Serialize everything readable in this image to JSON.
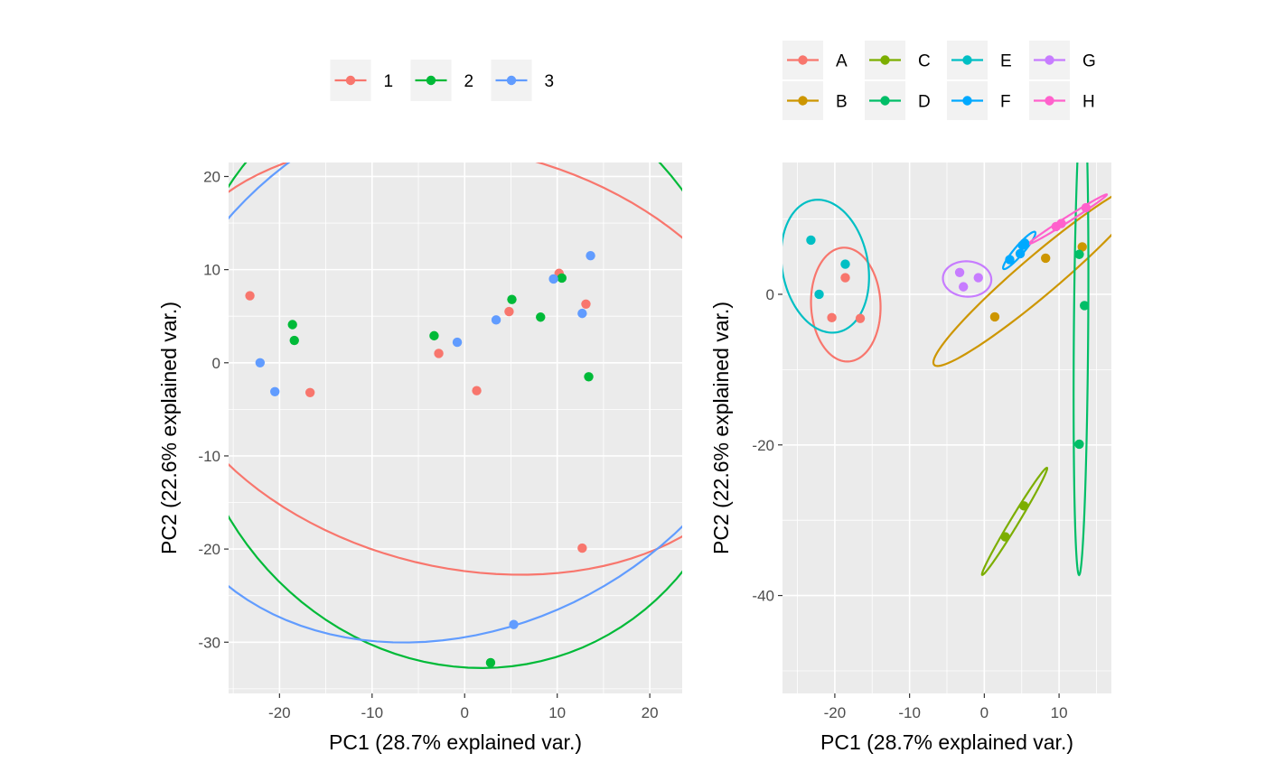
{
  "chart_data": [
    {
      "type": "scatter",
      "xlabel": "PC1 (28.7% explained var.)",
      "ylabel": "PC2 (22.6% explained var.)",
      "xlim": [
        -25.5,
        23.5
      ],
      "ylim": [
        -35.5,
        21.5
      ],
      "xticks": [
        -20,
        -10,
        0,
        10,
        20
      ],
      "yticks": [
        20,
        10,
        0,
        -10,
        -20,
        -30
      ],
      "grid": true,
      "background": "#ebebeb",
      "legend_position": "top",
      "ellipses": true,
      "legend": [
        {
          "label": "1",
          "color": "#F8766D"
        },
        {
          "label": "2",
          "color": "#00BA38"
        },
        {
          "label": "3",
          "color": "#619CFF"
        }
      ],
      "series": [
        {
          "name": "1",
          "color": "#F8766D",
          "points": [
            [
              -23.2,
              7.2
            ],
            [
              -16.7,
              -3.2
            ],
            [
              -2.8,
              1.0
            ],
            [
              1.3,
              -3.0
            ],
            [
              4.8,
              5.5
            ],
            [
              10.2,
              9.6
            ],
            [
              13.1,
              6.3
            ],
            [
              12.7,
              -19.9
            ]
          ]
        },
        {
          "name": "2",
          "color": "#00BA38",
          "points": [
            [
              -18.6,
              4.1
            ],
            [
              -18.4,
              2.4
            ],
            [
              -3.3,
              2.9
            ],
            [
              5.1,
              6.8
            ],
            [
              8.2,
              4.9
            ],
            [
              10.5,
              9.1
            ],
            [
              13.4,
              -1.5
            ],
            [
              2.8,
              -32.2
            ]
          ]
        },
        {
          "name": "3",
          "color": "#619CFF",
          "points": [
            [
              -22.1,
              0.0
            ],
            [
              -20.5,
              -3.1
            ],
            [
              -0.8,
              2.2
            ],
            [
              3.4,
              4.6
            ],
            [
              9.6,
              9.0
            ],
            [
              12.7,
              5.3
            ],
            [
              13.6,
              11.5
            ],
            [
              5.3,
              -28.1
            ]
          ]
        }
      ]
    },
    {
      "type": "scatter",
      "xlabel": "PC1 (28.7% explained var.)",
      "ylabel": "PC2 (22.6% explained var.)",
      "xlim": [
        -27,
        17
      ],
      "ylim": [
        -53,
        17.5
      ],
      "xticks": [
        -20,
        -10,
        0,
        10
      ],
      "yticks": [
        0,
        -20,
        -40
      ],
      "grid": true,
      "background": "#ebebeb",
      "legend_position": "top",
      "ellipses": true,
      "legend": [
        {
          "label": "A",
          "color": "#F8766D"
        },
        {
          "label": "B",
          "color": "#CD9600"
        },
        {
          "label": "C",
          "color": "#7CAE00"
        },
        {
          "label": "D",
          "color": "#00BE67"
        },
        {
          "label": "E",
          "color": "#00BFC4"
        },
        {
          "label": "F",
          "color": "#00A9FF"
        },
        {
          "label": "G",
          "color": "#C77CFF"
        },
        {
          "label": "H",
          "color": "#FF61CC"
        }
      ],
      "series": [
        {
          "name": "A",
          "color": "#F8766D",
          "points": [
            [
              -18.6,
              2.2
            ],
            [
              -20.4,
              -3.1
            ],
            [
              -16.6,
              -3.2
            ]
          ]
        },
        {
          "name": "B",
          "color": "#CD9600",
          "points": [
            [
              1.4,
              -3.0
            ],
            [
              8.2,
              4.8
            ],
            [
              13.1,
              6.3
            ]
          ]
        },
        {
          "name": "C",
          "color": "#7CAE00",
          "points": [
            [
              2.8,
              -32.2
            ],
            [
              5.3,
              -28.1
            ]
          ]
        },
        {
          "name": "D",
          "color": "#00BE67",
          "points": [
            [
              12.7,
              5.3
            ],
            [
              13.4,
              -1.5
            ],
            [
              12.7,
              -19.9
            ]
          ]
        },
        {
          "name": "E",
          "color": "#00BFC4",
          "points": [
            [
              -23.2,
              7.2
            ],
            [
              -22.1,
              0.0
            ],
            [
              -18.6,
              4.0
            ]
          ]
        },
        {
          "name": "F",
          "color": "#00A9FF",
          "points": [
            [
              3.4,
              4.6
            ],
            [
              4.8,
              5.4
            ],
            [
              5.1,
              6.5
            ],
            [
              5.4,
              6.8
            ]
          ]
        },
        {
          "name": "G",
          "color": "#C77CFF",
          "points": [
            [
              -3.3,
              2.9
            ],
            [
              -2.8,
              1.0
            ],
            [
              -0.8,
              2.2
            ]
          ]
        },
        {
          "name": "H",
          "color": "#FF61CC",
          "points": [
            [
              9.6,
              9.0
            ],
            [
              10.3,
              9.4
            ],
            [
              13.6,
              11.5
            ]
          ]
        }
      ]
    }
  ]
}
